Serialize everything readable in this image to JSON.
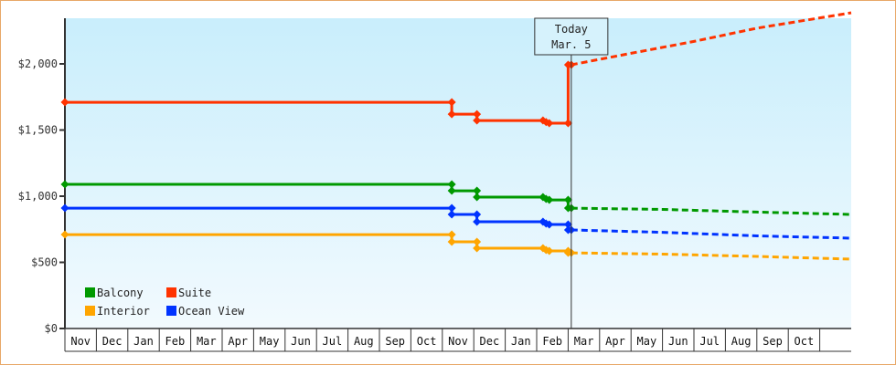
{
  "chart_data": {
    "type": "line",
    "title": "",
    "xlabel": "",
    "ylabel": "",
    "ylim": [
      0,
      2350
    ],
    "y_ticks": [
      {
        "value": 0,
        "label": "$0"
      },
      {
        "value": 500,
        "label": "$500"
      },
      {
        "value": 1000,
        "label": "$1,000"
      },
      {
        "value": 1500,
        "label": "$1,500"
      },
      {
        "value": 2000,
        "label": "$2,000"
      }
    ],
    "x_ticks": [
      "Nov",
      "Dec",
      "Jan",
      "Feb",
      "Mar",
      "Apr",
      "May",
      "Jun",
      "Jul",
      "Aug",
      "Sep",
      "Oct",
      "Nov",
      "Dec",
      "Jan",
      "Feb",
      "Mar",
      "Apr",
      "May",
      "Jun",
      "Jul",
      "Aug",
      "Sep",
      "Oct"
    ],
    "grid": false,
    "legend_position": "bottom-left inside",
    "annotation": {
      "line1": "Today",
      "line2": "Mar. 5",
      "month_index": 16.1
    },
    "series": [
      {
        "name": "Balcony",
        "color": "#009900",
        "history": [
          [
            0,
            1090
          ],
          [
            12.3,
            1090
          ],
          [
            12.3,
            1041
          ],
          [
            13.1,
            1041
          ],
          [
            13.1,
            993
          ],
          [
            15.2,
            993
          ],
          [
            15.3,
            979
          ],
          [
            15.4,
            972
          ],
          [
            16.0,
            972
          ],
          [
            16.0,
            910
          ],
          [
            16.1,
            910
          ]
        ],
        "forecast": [
          [
            16.1,
            910
          ],
          [
            19,
            900
          ],
          [
            22,
            880
          ],
          [
            24,
            862
          ]
        ]
      },
      {
        "name": "Suite",
        "color": "#ff3300",
        "history": [
          [
            0,
            1710
          ],
          [
            12.3,
            1710
          ],
          [
            12.3,
            1620
          ],
          [
            13.1,
            1620
          ],
          [
            13.1,
            1572
          ],
          [
            15.2,
            1572
          ],
          [
            15.3,
            1560
          ],
          [
            15.4,
            1552
          ],
          [
            16.0,
            1552
          ],
          [
            16.0,
            1993
          ],
          [
            16.1,
            1993
          ]
        ],
        "forecast": [
          [
            16.1,
            1993
          ],
          [
            18,
            2080
          ],
          [
            20,
            2170
          ],
          [
            22,
            2270
          ],
          [
            24,
            2386
          ]
        ]
      },
      {
        "name": "Interior",
        "color": "#ffa500",
        "history": [
          [
            0,
            710
          ],
          [
            12.3,
            710
          ],
          [
            12.3,
            655
          ],
          [
            13.1,
            655
          ],
          [
            13.1,
            607
          ],
          [
            15.2,
            607
          ],
          [
            15.3,
            593
          ],
          [
            15.4,
            586
          ],
          [
            16.0,
            586
          ],
          [
            16.0,
            572
          ],
          [
            16.1,
            572
          ]
        ],
        "forecast": [
          [
            16.1,
            572
          ],
          [
            19,
            562
          ],
          [
            22,
            545
          ],
          [
            24,
            524
          ]
        ]
      },
      {
        "name": "Ocean View",
        "color": "#0033ff",
        "history": [
          [
            0,
            910
          ],
          [
            12.3,
            910
          ],
          [
            12.3,
            862
          ],
          [
            13.1,
            862
          ],
          [
            13.1,
            807
          ],
          [
            15.2,
            807
          ],
          [
            15.3,
            793
          ],
          [
            15.4,
            786
          ],
          [
            16.0,
            786
          ],
          [
            16.0,
            745
          ],
          [
            16.1,
            745
          ]
        ],
        "forecast": [
          [
            16.1,
            745
          ],
          [
            19,
            727
          ],
          [
            22,
            700
          ],
          [
            24,
            683
          ]
        ]
      }
    ]
  },
  "legend": {
    "items": [
      {
        "label": "Balcony",
        "color": "#009900"
      },
      {
        "label": "Suite",
        "color": "#ff3300"
      },
      {
        "label": "Interior",
        "color": "#ffa500"
      },
      {
        "label": "Ocean View",
        "color": "#0033ff"
      }
    ]
  },
  "today_box": {
    "line1": "Today",
    "line2": "Mar. 5"
  },
  "colors": {
    "frame_border": "#e8a868",
    "plot_top": "#c9eefc",
    "plot_bottom": "#f2fafe",
    "axis": "#333333"
  }
}
